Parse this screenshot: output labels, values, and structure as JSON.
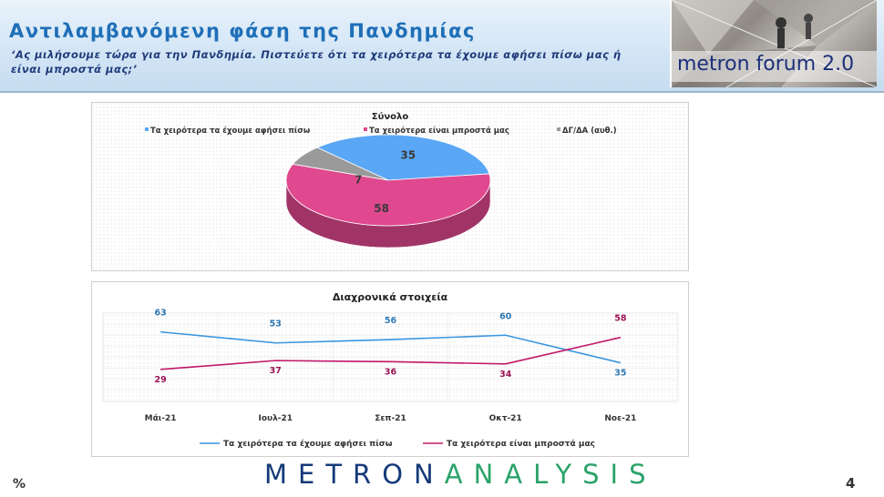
{
  "header": {
    "title": "Αντιλαμβανόμενη φάση της Πανδημίας",
    "subtitle": "‘Ας μιλήσουμε τώρα για την Πανδημία. Πιστεύετε ότι τα χειρότερα τα έχουμε αφήσει πίσω μας ή είναι μπροστά μας;’",
    "forum_label": "metron forum 2.0"
  },
  "footer": {
    "logo_metron": "METRON",
    "logo_analysis": "ANALYSIS",
    "percent_sign": "%",
    "page_number": "4"
  },
  "colors": {
    "blue": "#5aa7f5",
    "pink": "#e0488f",
    "gray": "#9a9a9a",
    "line_blue": "#3a96e0",
    "line_pink": "#c2186b"
  },
  "chart_data": [
    {
      "type": "pie",
      "title": "Σύνολο",
      "legend_position": "top",
      "slices": [
        {
          "label": "Τα χειρότερα τα έχουμε αφήσει πίσω",
          "value": 35,
          "color": "#5aa7f5"
        },
        {
          "label": "Τα χειρότερα είναι μπροστά μας",
          "value": 58,
          "color": "#e0488f"
        },
        {
          "label": "ΔΓ/ΔΑ (αυθ.)",
          "value": 7,
          "color": "#9a9a9a"
        }
      ]
    },
    {
      "type": "line",
      "title": "Διαχρονικά στοιχεία",
      "legend_position": "bottom",
      "grid": true,
      "categories": [
        "Μάι-21",
        "Ιουλ-21",
        "Σεπ-21",
        "Οκτ-21",
        "Νοε-21"
      ],
      "ylim": [
        0,
        80
      ],
      "series": [
        {
          "name": "Τα χειρότερα τα έχουμε αφήσει πίσω",
          "values": [
            63,
            53,
            56,
            60,
            35
          ],
          "color": "#3a96e0"
        },
        {
          "name": "Τα χειρότερα είναι μπροστά μας",
          "values": [
            29,
            37,
            36,
            34,
            58
          ],
          "color": "#c2186b"
        }
      ]
    }
  ]
}
